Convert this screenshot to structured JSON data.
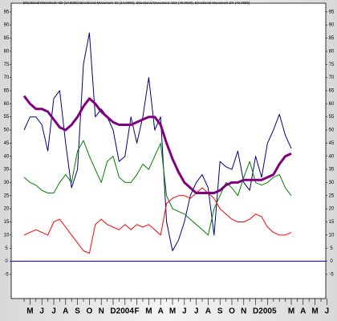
{
  "chart_data": {
    "type": "line",
    "title": "Directional Movement +DI (14.0000) Directional Movement -DI (14.0000), Directional Movement ADX (40.0000), Directional Movement DX (40.0000)",
    "categories": [
      null,
      "M",
      null,
      "J",
      null,
      "J",
      null,
      "A",
      null,
      "S",
      null,
      "O",
      null,
      "N",
      null,
      "D",
      null,
      "2004",
      null,
      "F",
      null,
      "M",
      null,
      "A",
      null,
      "M",
      null,
      "J",
      null,
      "J",
      null,
      "A",
      null,
      "S",
      null,
      "O",
      null,
      "N",
      null,
      "D",
      null,
      "2005",
      null,
      null,
      null,
      "M",
      null,
      "A",
      null,
      "M",
      null,
      "J"
    ],
    "series": [
      {
        "color": "#000080",
        "width": 1,
        "values": [
          50,
          55,
          55,
          52,
          42,
          62,
          65,
          45,
          28,
          35,
          75,
          87,
          55,
          58,
          55,
          50,
          38,
          40,
          55,
          45,
          55,
          70,
          50,
          55,
          15,
          4,
          8,
          15,
          25,
          30,
          33,
          28,
          10,
          38,
          36,
          35,
          42,
          30,
          27,
          40,
          32,
          45,
          50,
          56,
          48,
          43,
          null,
          null,
          null,
          null,
          null,
          null
        ]
      },
      {
        "color": "#008000",
        "width": 1,
        "values": [
          32,
          30,
          29,
          27,
          26,
          26,
          30,
          33,
          30,
          42,
          46,
          40,
          35,
          30,
          38,
          40,
          32,
          30,
          30,
          33,
          37,
          35,
          40,
          45,
          25,
          20,
          19,
          18,
          16,
          14,
          12,
          10,
          20,
          25,
          30,
          28,
          25,
          32,
          38,
          30,
          29,
          30,
          32,
          33,
          28,
          25,
          null,
          null,
          null,
          null,
          null,
          null
        ]
      },
      {
        "color": "#ff0000",
        "width": 1,
        "values": [
          10,
          11,
          12,
          11,
          10,
          15,
          16,
          13,
          10,
          7,
          4,
          3,
          14,
          16,
          14,
          13,
          12,
          14,
          12,
          14,
          13,
          14,
          12,
          10,
          22,
          24,
          25,
          25,
          24,
          26,
          28,
          26,
          24,
          20,
          18,
          16,
          15,
          15,
          16,
          18,
          17,
          13,
          11,
          10,
          10,
          11,
          null,
          null,
          null,
          null,
          null,
          null
        ]
      },
      {
        "color": "#800080",
        "width": 3,
        "values": [
          63,
          60,
          58,
          58,
          57,
          54,
          51,
          50,
          52,
          55,
          59,
          62,
          60,
          57,
          55,
          53,
          52,
          52,
          52,
          53,
          54,
          55,
          55,
          52,
          45,
          39,
          34,
          30,
          28,
          26,
          26,
          26,
          26,
          27,
          29,
          30,
          30,
          31,
          31,
          31,
          31,
          32,
          33,
          37,
          40,
          41,
          null,
          null,
          null,
          null,
          null,
          null
        ]
      }
    ],
    "ylim": [
      -9,
      98
    ],
    "yticks": [
      -5,
      0,
      5,
      10,
      15,
      20,
      25,
      30,
      35,
      40,
      45,
      50,
      55,
      60,
      65,
      70,
      75,
      80,
      85,
      90,
      95
    ],
    "zero_line_color": "#0000ff"
  }
}
